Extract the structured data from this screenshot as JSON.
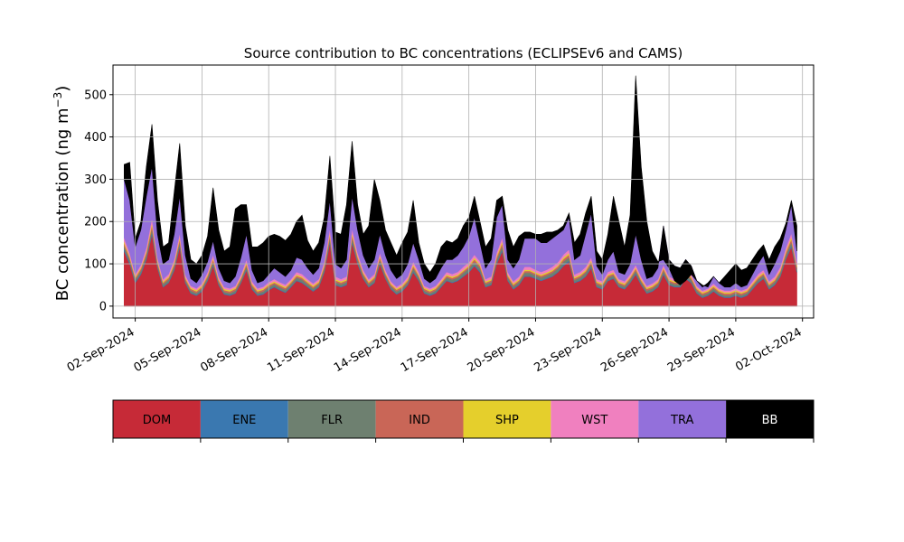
{
  "chart_data": {
    "type": "area",
    "stacked": true,
    "title": "Source contribution to BC concentrations (ECLIPSEv6 and CAMS)",
    "xlabel": "",
    "ylabel": "BC concentration (ng m",
    "ylabel_sup": "−3",
    "ylabel_close": ")",
    "ylim": [
      -28,
      570
    ],
    "xlim": [
      "2024-09-01T00:00",
      "2024-10-02T12:00"
    ],
    "grid": true,
    "y_ticks": [
      0,
      100,
      200,
      300,
      400,
      500
    ],
    "x_tick_labels": [
      "02-Sep-2024",
      "05-Sep-2024",
      "08-Sep-2024",
      "11-Sep-2024",
      "14-Sep-2024",
      "17-Sep-2024",
      "20-Sep-2024",
      "23-Sep-2024",
      "26-Sep-2024",
      "29-Sep-2024",
      "02-Oct-2024"
    ],
    "x_tick_dates": [
      "2024-09-02",
      "2024-09-05",
      "2024-09-08",
      "2024-09-11",
      "2024-09-14",
      "2024-09-17",
      "2024-09-20",
      "2024-09-23",
      "2024-09-26",
      "2024-09-29",
      "2024-10-02"
    ],
    "series_names": [
      "DOM",
      "ENE",
      "FLR",
      "IND",
      "SHP",
      "WST",
      "TRA",
      "BB"
    ],
    "colors": {
      "DOM": "#c62a37",
      "ENE": "#3a78b0",
      "FLR": "#6e8070",
      "IND": "#c96657",
      "SHP": "#e5cf2c",
      "WST": "#f080bf",
      "TRA": "#9370db",
      "BB": "#000000"
    },
    "legend_placement": "bottom colorbar",
    "cumulative_tops": {
      "x": [
        "2024-09-01T12:00",
        "2024-09-01T18:00",
        "2024-09-02T00:00",
        "2024-09-02T06:00",
        "2024-09-02T12:00",
        "2024-09-02T18:00",
        "2024-09-03T00:00",
        "2024-09-03T06:00",
        "2024-09-03T12:00",
        "2024-09-03T18:00",
        "2024-09-04T00:00",
        "2024-09-04T06:00",
        "2024-09-04T12:00",
        "2024-09-04T18:00",
        "2024-09-05T00:00",
        "2024-09-05T06:00",
        "2024-09-05T12:00",
        "2024-09-05T18:00",
        "2024-09-06T00:00",
        "2024-09-06T06:00",
        "2024-09-06T12:00",
        "2024-09-06T18:00",
        "2024-09-07T00:00",
        "2024-09-07T06:00",
        "2024-09-07T12:00",
        "2024-09-07T18:00",
        "2024-09-08T00:00",
        "2024-09-08T06:00",
        "2024-09-08T12:00",
        "2024-09-08T18:00",
        "2024-09-09T00:00",
        "2024-09-09T06:00",
        "2024-09-09T12:00",
        "2024-09-09T18:00",
        "2024-09-10T00:00",
        "2024-09-10T06:00",
        "2024-09-10T12:00",
        "2024-09-10T18:00",
        "2024-09-11T00:00",
        "2024-09-11T06:00",
        "2024-09-11T12:00",
        "2024-09-11T18:00",
        "2024-09-12T00:00",
        "2024-09-12T06:00",
        "2024-09-12T12:00",
        "2024-09-12T18:00",
        "2024-09-13T00:00",
        "2024-09-13T06:00",
        "2024-09-13T12:00",
        "2024-09-13T18:00",
        "2024-09-14T00:00",
        "2024-09-14T06:00",
        "2024-09-14T12:00",
        "2024-09-14T18:00",
        "2024-09-15T00:00",
        "2024-09-15T06:00",
        "2024-09-15T12:00",
        "2024-09-15T18:00",
        "2024-09-16T00:00",
        "2024-09-16T06:00",
        "2024-09-16T12:00",
        "2024-09-16T18:00",
        "2024-09-17T00:00",
        "2024-09-17T06:00",
        "2024-09-17T12:00",
        "2024-09-17T18:00",
        "2024-09-18T00:00",
        "2024-09-18T06:00",
        "2024-09-18T12:00",
        "2024-09-18T18:00",
        "2024-09-19T00:00",
        "2024-09-19T06:00",
        "2024-09-19T12:00",
        "2024-09-19T18:00",
        "2024-09-20T00:00",
        "2024-09-20T06:00",
        "2024-09-20T12:00",
        "2024-09-20T18:00",
        "2024-09-21T00:00",
        "2024-09-21T06:00",
        "2024-09-21T12:00",
        "2024-09-21T18:00",
        "2024-09-22T00:00",
        "2024-09-22T06:00",
        "2024-09-22T12:00",
        "2024-09-22T18:00",
        "2024-09-23T00:00",
        "2024-09-23T06:00",
        "2024-09-23T12:00",
        "2024-09-23T18:00",
        "2024-09-24T00:00",
        "2024-09-24T06:00",
        "2024-09-24T12:00",
        "2024-09-24T18:00",
        "2024-09-25T00:00",
        "2024-09-25T06:00",
        "2024-09-25T12:00",
        "2024-09-25T18:00",
        "2024-09-26T00:00",
        "2024-09-26T06:00",
        "2024-09-26T12:00",
        "2024-09-26T18:00",
        "2024-09-27T00:00",
        "2024-09-27T06:00",
        "2024-09-27T12:00",
        "2024-09-27T18:00",
        "2024-09-28T00:00",
        "2024-09-28T06:00",
        "2024-09-28T12:00",
        "2024-09-28T18:00",
        "2024-09-29T00:00",
        "2024-09-29T06:00",
        "2024-09-29T12:00",
        "2024-09-29T18:00",
        "2024-09-30T00:00",
        "2024-09-30T06:00",
        "2024-09-30T12:00",
        "2024-09-30T18:00",
        "2024-10-01T00:00",
        "2024-10-01T06:00",
        "2024-10-01T12:00",
        "2024-10-01T18:00"
      ],
      "DOM": [
        130,
        100,
        55,
        75,
        110,
        170,
        90,
        45,
        55,
        85,
        140,
        55,
        30,
        25,
        35,
        60,
        95,
        50,
        28,
        25,
        30,
        55,
        85,
        40,
        25,
        28,
        38,
        45,
        38,
        32,
        45,
        60,
        55,
        45,
        35,
        45,
        80,
        150,
        50,
        45,
        50,
        150,
        100,
        65,
        45,
        55,
        100,
        65,
        40,
        28,
        35,
        50,
        80,
        60,
        30,
        25,
        30,
        45,
        60,
        55,
        60,
        70,
        80,
        95,
        80,
        45,
        50,
        100,
        130,
        60,
        40,
        50,
        70,
        70,
        65,
        60,
        65,
        70,
        80,
        95,
        105,
        55,
        60,
        70,
        90,
        45,
        40,
        60,
        65,
        45,
        40,
        55,
        75,
        50,
        30,
        35,
        45,
        75,
        50,
        45,
        45,
        65,
        55,
        30,
        20,
        25,
        35,
        25,
        20,
        20,
        25,
        20,
        25,
        40,
        55,
        65,
        40,
        50,
        70,
        110,
        140,
        80,
        60,
        75,
        80
      ],
      "ENE": [
        135,
        104,
        58,
        78,
        114,
        175,
        93,
        47,
        57,
        88,
        144,
        57,
        32,
        27,
        37,
        62,
        98,
        52,
        30,
        27,
        32,
        57,
        88,
        42,
        27,
        30,
        40,
        47,
        40,
        34,
        47,
        62,
        57,
        47,
        37,
        47,
        83,
        154,
        52,
        47,
        52,
        154,
        103,
        67,
        47,
        57,
        103,
        67,
        42,
        30,
        37,
        52,
        83,
        62,
        32,
        27,
        32,
        47,
        62,
        57,
        62,
        72,
        82,
        98,
        83,
        47,
        52,
        103,
        134,
        62,
        42,
        52,
        72,
        72,
        67,
        62,
        67,
        72,
        82,
        98,
        108,
        57,
        62,
        72,
        93,
        47,
        42,
        62,
        67,
        47,
        42,
        57,
        78,
        52,
        32,
        37,
        47,
        78,
        52,
        47,
        47,
        67,
        57,
        32,
        22,
        27,
        37,
        27,
        22,
        22,
        27,
        22,
        27,
        42,
        57,
        67,
        42,
        52,
        72,
        113,
        144,
        82,
        62,
        77,
        82
      ],
      "FLR": [
        142,
        110,
        63,
        84,
        121,
        184,
        99,
        52,
        63,
        95,
        152,
        62,
        37,
        31,
        42,
        68,
        105,
        57,
        34,
        31,
        37,
        62,
        95,
        47,
        31,
        35,
        45,
        52,
        45,
        39,
        52,
        68,
        63,
        52,
        42,
        52,
        90,
        162,
        57,
        52,
        57,
        162,
        110,
        73,
        52,
        63,
        110,
        73,
        47,
        35,
        42,
        57,
        90,
        68,
        37,
        31,
        37,
        52,
        68,
        63,
        68,
        79,
        89,
        105,
        90,
        52,
        57,
        110,
        142,
        68,
        47,
        57,
        79,
        79,
        73,
        68,
        73,
        79,
        89,
        105,
        116,
        62,
        68,
        79,
        100,
        52,
        47,
        68,
        73,
        52,
        47,
        63,
        84,
        57,
        37,
        42,
        52,
        84,
        57,
        52,
        52,
        73,
        63,
        37,
        26,
        31,
        42,
        31,
        26,
        26,
        31,
        26,
        31,
        47,
        63,
        73,
        47,
        57,
        79,
        120,
        152,
        88,
        68,
        84,
        89
      ],
      "IND": [
        148,
        115,
        67,
        89,
        127,
        192,
        104,
        56,
        67,
        100,
        159,
        66,
        41,
        35,
        46,
        72,
        111,
        61,
        38,
        35,
        41,
        66,
        100,
        51,
        35,
        39,
        49,
        56,
        49,
        43,
        56,
        72,
        67,
        56,
        46,
        56,
        95,
        169,
        61,
        56,
        61,
        169,
        116,
        77,
        56,
        67,
        116,
        77,
        51,
        39,
        46,
        61,
        95,
        72,
        41,
        35,
        41,
        56,
        72,
        67,
        72,
        83,
        94,
        111,
        95,
        56,
        61,
        116,
        149,
        72,
        51,
        61,
        83,
        83,
        77,
        72,
        77,
        83,
        94,
        111,
        122,
        66,
        72,
        83,
        105,
        56,
        51,
        72,
        77,
        56,
        51,
        67,
        89,
        61,
        41,
        46,
        56,
        89,
        61,
        56,
        56,
        77,
        67,
        41,
        30,
        35,
        46,
        35,
        30,
        30,
        35,
        30,
        35,
        51,
        67,
        77,
        51,
        61,
        83,
        126,
        159,
        93,
        72,
        88,
        94
      ],
      "SHP": [
        153,
        119,
        70,
        92,
        131,
        198,
        108,
        59,
        70,
        104,
        164,
        69,
        44,
        38,
        49,
        75,
        115,
        64,
        41,
        38,
        44,
        69,
        104,
        54,
        38,
        42,
        52,
        59,
        52,
        46,
        59,
        75,
        70,
        59,
        49,
        59,
        99,
        174,
        64,
        59,
        64,
        174,
        120,
        80,
        59,
        70,
        120,
        80,
        54,
        42,
        49,
        64,
        99,
        75,
        44,
        38,
        44,
        59,
        75,
        70,
        75,
        86,
        97,
        115,
        99,
        59,
        64,
        120,
        154,
        75,
        54,
        64,
        86,
        86,
        80,
        75,
        80,
        86,
        97,
        115,
        126,
        69,
        75,
        86,
        109,
        59,
        54,
        75,
        80,
        59,
        54,
        70,
        92,
        64,
        44,
        49,
        59,
        92,
        64,
        59,
        59,
        80,
        70,
        44,
        33,
        38,
        49,
        38,
        33,
        33,
        38,
        33,
        38,
        54,
        70,
        80,
        54,
        64,
        86,
        130,
        164,
        96,
        75,
        91,
        97
      ],
      "WST": [
        162,
        126,
        76,
        98,
        139,
        209,
        115,
        64,
        76,
        111,
        173,
        75,
        48,
        42,
        54,
        81,
        122,
        70,
        45,
        42,
        48,
        75,
        111,
        59,
        42,
        46,
        57,
        64,
        57,
        51,
        64,
        81,
        76,
        64,
        54,
        64,
        106,
        184,
        70,
        64,
        70,
        184,
        127,
        86,
        64,
        76,
        127,
        86,
        59,
        46,
        54,
        70,
        106,
        81,
        48,
        42,
        48,
        64,
        81,
        76,
        81,
        93,
        104,
        122,
        106,
        64,
        70,
        127,
        163,
        81,
        59,
        70,
        93,
        93,
        86,
        81,
        86,
        93,
        104,
        122,
        134,
        75,
        81,
        93,
        116,
        64,
        59,
        81,
        86,
        64,
        59,
        76,
        98,
        70,
        48,
        54,
        64,
        98,
        70,
        64,
        64,
        86,
        76,
        48,
        37,
        42,
        54,
        42,
        37,
        37,
        42,
        37,
        42,
        59,
        76,
        86,
        59,
        70,
        93,
        138,
        173,
        103,
        81,
        97,
        104
      ],
      "TRA": [
        300,
        250,
        140,
        180,
        260,
        330,
        170,
        100,
        110,
        170,
        260,
        120,
        65,
        55,
        75,
        105,
        155,
        90,
        60,
        55,
        70,
        115,
        170,
        85,
        55,
        60,
        75,
        90,
        80,
        70,
        85,
        115,
        110,
        90,
        75,
        90,
        150,
        250,
        100,
        90,
        110,
        260,
        180,
        120,
        90,
        110,
        170,
        120,
        85,
        65,
        75,
        100,
        150,
        110,
        65,
        55,
        65,
        90,
        110,
        110,
        120,
        140,
        165,
        210,
        150,
        90,
        110,
        210,
        240,
        110,
        90,
        110,
        160,
        160,
        160,
        150,
        150,
        160,
        170,
        180,
        210,
        110,
        120,
        170,
        220,
        95,
        75,
        110,
        130,
        80,
        75,
        100,
        170,
        110,
        65,
        70,
        90,
        190,
        110,
        95,
        90,
        110,
        95,
        60,
        45,
        55,
        70,
        55,
        45,
        45,
        55,
        45,
        50,
        75,
        100,
        120,
        75,
        100,
        130,
        180,
        240,
        130,
        100,
        120,
        130
      ],
      "BB": [
        335,
        340,
        160,
        200,
        330,
        430,
        250,
        140,
        150,
        270,
        385,
        190,
        110,
        100,
        120,
        165,
        280,
        180,
        130,
        140,
        230,
        240,
        240,
        140,
        140,
        150,
        165,
        170,
        165,
        155,
        170,
        200,
        215,
        155,
        130,
        150,
        210,
        355,
        175,
        170,
        240,
        390,
        240,
        170,
        190,
        300,
        250,
        180,
        150,
        120,
        150,
        175,
        250,
        150,
        100,
        80,
        100,
        140,
        155,
        150,
        160,
        190,
        210,
        260,
        200,
        140,
        160,
        250,
        260,
        180,
        140,
        165,
        175,
        175,
        170,
        170,
        175,
        175,
        180,
        190,
        220,
        150,
        170,
        220,
        260,
        130,
        110,
        170,
        260,
        200,
        140,
        215,
        545,
        330,
        200,
        130,
        105,
        110,
        90,
        60,
        50,
        60,
        75,
        60,
        50,
        45,
        70,
        55,
        70,
        85,
        100,
        85,
        90,
        110,
        130,
        145,
        110,
        140,
        160,
        195,
        250,
        190,
        140,
        150,
        185
      ]
    }
  }
}
